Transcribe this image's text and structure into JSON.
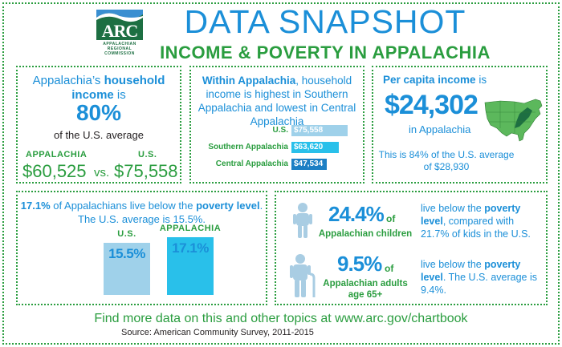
{
  "header": {
    "logo_text": "ARC",
    "logo_sub": "APPALACHIAN REGIONAL COMMISSION",
    "title": "DATA SNAPSHOT",
    "subtitle": "INCOME & POVERTY IN APPALACHIA"
  },
  "household": {
    "intro_pre": "Appalachia’s ",
    "intro_bold": "household income",
    "intro_post": " is",
    "percent": "80%",
    "caption": "of the U.S. average",
    "appalachia_label": "APPALACHIA",
    "us_label": "U.S.",
    "appalachia_value": "$60,525",
    "vs": "vs.",
    "us_value": "$75,558"
  },
  "regional": {
    "intro_bold": "Within Appalachia",
    "intro_rest": ", household income is highest in Southern Appalachia and lowest in Central Appalachia",
    "bars": [
      {
        "label": "U.S.",
        "value": 75558,
        "display": "$75,558",
        "color": "#9fd1ea"
      },
      {
        "label": "Southern Appalachia",
        "value": 63620,
        "display": "$63,620",
        "color": "#29c0ea"
      },
      {
        "label": "Central Appalachia",
        "value": 47534,
        "display": "$47,534",
        "color": "#1c7fc4"
      }
    ]
  },
  "per_capita": {
    "label_bold": "Per capita income",
    "label_rest": " is",
    "value": "$24,302",
    "where": "in Appalachia",
    "note": "This is 84% of the U.S. average of $28,930",
    "map_icon": "us-map-icon"
  },
  "poverty": {
    "intro_bold1": "17.1%",
    "intro_mid": " of Appalachians live below the ",
    "intro_bold2": "poverty level",
    "intro_end": ". The U.S. average is 15.5%.",
    "columns": [
      {
        "label": "U.S.",
        "value": 15.5,
        "display": "15.5%",
        "color": "#9fd1ea"
      },
      {
        "label": "APPALACHIA",
        "value": 17.1,
        "display": "17.1%",
        "color": "#29c0ea"
      }
    ]
  },
  "groups": {
    "children": {
      "percent": "24.4%",
      "of": "of",
      "who": "Appalachian children",
      "desc_pre": "live below the ",
      "desc_bold": "poverty level",
      "desc_post": ", compared with 21.7% of kids in the U.S.",
      "icon": "child-icon"
    },
    "seniors": {
      "percent": "9.5%",
      "of": "of",
      "who": "Appalachian adults age 65+",
      "desc_pre": "live below the ",
      "desc_bold": "poverty level",
      "desc_post": ". The U.S. average is 9.4%.",
      "icon": "senior-with-cane-icon"
    }
  },
  "footer": {
    "more": "Find more data on this and other topics at www.arc.gov/chartbook",
    "source": "Source: American Community Survey, 2011-2015"
  }
}
